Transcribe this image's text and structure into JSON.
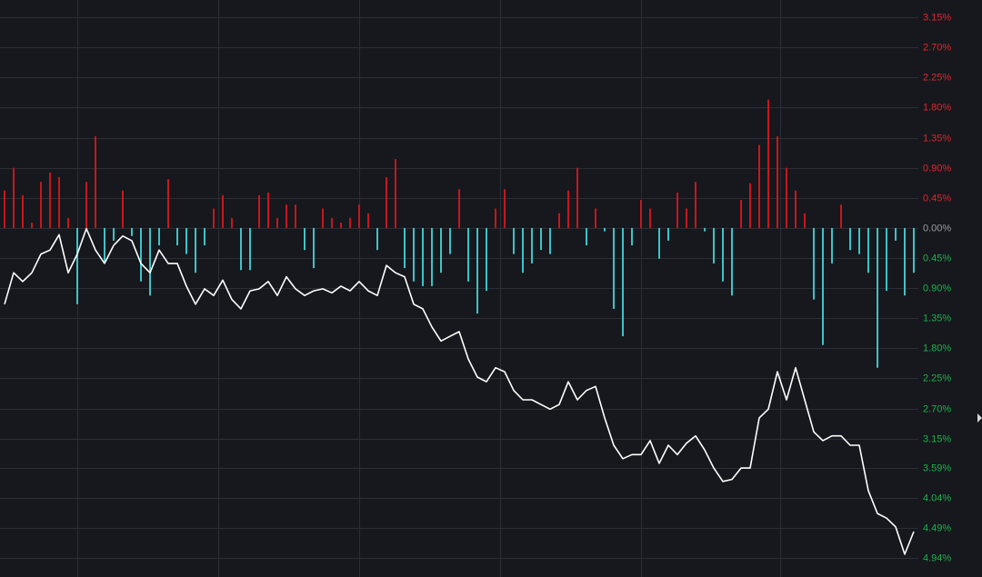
{
  "chart_data": {
    "type": "bar-line",
    "ylim": [
      -5.22,
      3.41
    ],
    "yticks": [
      {
        "value": 3.15,
        "label": "3.15%"
      },
      {
        "value": 2.7,
        "label": "2.70%"
      },
      {
        "value": 2.25,
        "label": "2.25%"
      },
      {
        "value": 1.8,
        "label": "1.80%"
      },
      {
        "value": 1.35,
        "label": "1.35%"
      },
      {
        "value": 0.9,
        "label": "0.90%"
      },
      {
        "value": 0.45,
        "label": "0.45%"
      },
      {
        "value": 0,
        "label": "0.00%"
      },
      {
        "value": -0.45,
        "label": "0.45%"
      },
      {
        "value": -0.9,
        "label": "0.90%"
      },
      {
        "value": -1.35,
        "label": "1.35%"
      },
      {
        "value": -1.8,
        "label": "1.80%"
      },
      {
        "value": -2.25,
        "label": "2.25%"
      },
      {
        "value": -2.7,
        "label": "2.70%"
      },
      {
        "value": -3.15,
        "label": "3.15%"
      },
      {
        "value": -3.59,
        "label": "3.59%"
      },
      {
        "value": -4.04,
        "label": "4.04%"
      },
      {
        "value": -4.49,
        "label": "4.49%"
      },
      {
        "value": -4.94,
        "label": "4.94%"
      }
    ],
    "grid": true,
    "up_color": "#c8161d",
    "down_color": "#3cc4c8",
    "up_label_color": "#e0262c",
    "down_label_color": "#1fb14b",
    "zero_label_color": "#9a9ca3",
    "series": [
      {
        "type": "bar",
        "values": [
          0.56,
          0.9,
          0.49,
          0.08,
          0.69,
          0.83,
          0.76,
          0.15,
          -1.14,
          0.69,
          1.37,
          -0.53,
          -0.19,
          0.56,
          -0.12,
          -0.8,
          -1.01,
          -0.26,
          0.73,
          -0.26,
          -0.39,
          -0.67,
          -0.26,
          0.29,
          0.49,
          0.15,
          -0.63,
          -0.63,
          0.49,
          0.53,
          0.15,
          0.35,
          0.35,
          -0.33,
          -0.6,
          0.29,
          0.15,
          0.08,
          0.15,
          0.35,
          0.22,
          -0.33,
          0.76,
          1.03,
          -0.6,
          -0.8,
          -0.87,
          -0.87,
          -0.67,
          -0.39,
          0.58,
          -0.8,
          -1.28,
          -0.94,
          0.29,
          0.58,
          -0.39,
          -0.67,
          -0.53,
          -0.33,
          -0.39,
          0.22,
          0.56,
          0.9,
          -0.26,
          0.29,
          -0.05,
          -1.21,
          -1.62,
          -0.26,
          0.42,
          0.29,
          -0.46,
          -0.19,
          0.53,
          0.29,
          0.69,
          -0.05,
          -0.53,
          -0.8,
          -1.01,
          0.42,
          0.67,
          1.24,
          1.92,
          1.37,
          0.9,
          0.56,
          0.22,
          -1.07,
          -1.75,
          -0.53,
          0.35,
          -0.33,
          -0.39,
          -0.67,
          -2.09,
          -0.94,
          -0.19,
          -1.01,
          -0.67
        ]
      },
      {
        "type": "line",
        "color": "#ffffff",
        "values": [
          -1.14,
          -0.67,
          -0.8,
          -0.67,
          -0.39,
          -0.33,
          -0.1,
          -0.67,
          -0.39,
          -0.01,
          -0.33,
          -0.53,
          -0.26,
          -0.12,
          -0.19,
          -0.53,
          -0.67,
          -0.33,
          -0.53,
          -0.53,
          -0.87,
          -1.14,
          -0.91,
          -1.01,
          -0.78,
          -1.07,
          -1.21,
          -0.94,
          -0.91,
          -0.8,
          -1.01,
          -0.73,
          -0.91,
          -1.01,
          -0.94,
          -0.91,
          -0.97,
          -0.87,
          -0.94,
          -0.8,
          -0.94,
          -1.01,
          -0.56,
          -0.67,
          -0.73,
          -1.14,
          -1.21,
          -1.48,
          -1.69,
          -1.62,
          -1.55,
          -1.96,
          -2.23,
          -2.3,
          -2.09,
          -2.15,
          -2.43,
          -2.57,
          -2.57,
          -2.64,
          -2.71,
          -2.64,
          -2.3,
          -2.57,
          -2.43,
          -2.37,
          -2.84,
          -3.25,
          -3.45,
          -3.39,
          -3.39,
          -3.18,
          -3.52,
          -3.25,
          -3.39,
          -3.22,
          -3.11,
          -3.32,
          -3.59,
          -3.79,
          -3.76,
          -3.59,
          -3.59,
          -2.84,
          -2.71,
          -2.15,
          -2.57,
          -2.09,
          -2.57,
          -3.05,
          -3.18,
          -3.11,
          -3.11,
          -3.25,
          -3.25,
          -3.93,
          -4.27,
          -4.34,
          -4.47,
          -4.88,
          -4.54
        ]
      }
    ]
  }
}
